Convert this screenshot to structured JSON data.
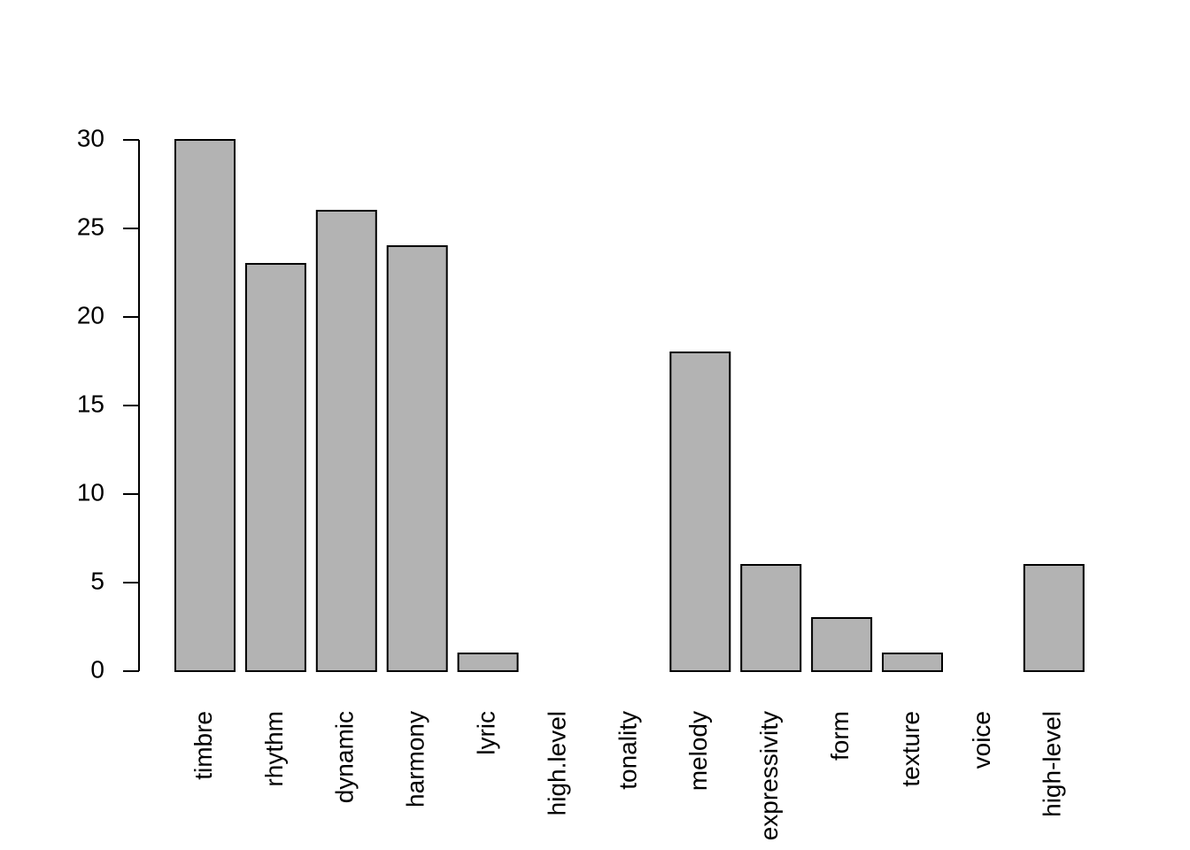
{
  "chart_data": {
    "type": "bar",
    "categories": [
      "timbre",
      "rhythm",
      "dynamic",
      "harmony",
      "lyric",
      "high.level",
      "tonality",
      "melody",
      "expressivity",
      "form",
      "texture",
      "voice",
      "high-level"
    ],
    "values": [
      30,
      23,
      26,
      24,
      1,
      0,
      0,
      18,
      6,
      3,
      1,
      0,
      6
    ],
    "color": "#b3b3b3",
    "ylim": [
      0,
      30
    ],
    "yticks": [
      0,
      5,
      10,
      15,
      20,
      25,
      30
    ],
    "grid": false
  }
}
